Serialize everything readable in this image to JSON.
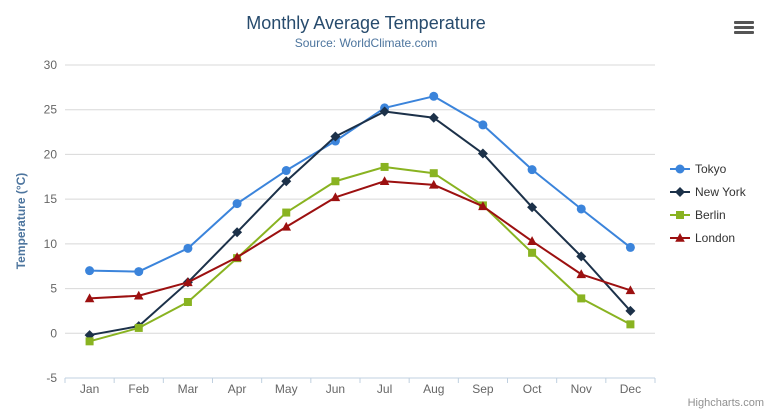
{
  "credits": "Highcharts.com",
  "colors": {
    "title": "#274b6d",
    "subtitle": "#4d759e",
    "axis_title": "#4d759e",
    "tick_label": "#666666",
    "grid_line": "#d8d8d8",
    "axis_line": "#c0d0e0",
    "legend_text": "#333333",
    "credits_text": "#909090",
    "export_icon": "#555555"
  },
  "chart_data": {
    "type": "line",
    "title": "Monthly Average Temperature",
    "subtitle": "Source: WorldClimate.com",
    "xlabel": "",
    "ylabel": "Temperature (°C)",
    "ylim": [
      -5,
      30
    ],
    "y_ticks": [
      30,
      25,
      20,
      15,
      10,
      5,
      0,
      -5
    ],
    "grid": true,
    "legend_position": "right-middle",
    "categories": [
      "Jan",
      "Feb",
      "Mar",
      "Apr",
      "May",
      "Jun",
      "Jul",
      "Aug",
      "Sep",
      "Oct",
      "Nov",
      "Dec"
    ],
    "series": [
      {
        "name": "Tokyo",
        "color": "#3b84db",
        "marker": "circle",
        "values": [
          7.0,
          6.9,
          9.5,
          14.5,
          18.2,
          21.5,
          25.2,
          26.5,
          23.3,
          18.3,
          13.9,
          9.6
        ]
      },
      {
        "name": "New York",
        "color": "#1c3149",
        "marker": "diamond",
        "values": [
          -0.2,
          0.8,
          5.7,
          11.3,
          17.0,
          22.0,
          24.8,
          24.1,
          20.1,
          14.1,
          8.6,
          2.5
        ]
      },
      {
        "name": "Berlin",
        "color": "#89b321",
        "marker": "square",
        "values": [
          -0.9,
          0.6,
          3.5,
          8.4,
          13.5,
          17.0,
          18.6,
          17.9,
          14.3,
          9.0,
          3.9,
          1.0
        ]
      },
      {
        "name": "London",
        "color": "#9c1010",
        "marker": "triangle",
        "values": [
          3.9,
          4.2,
          5.7,
          8.5,
          11.9,
          15.2,
          17.0,
          16.6,
          14.2,
          10.3,
          6.6,
          4.8
        ]
      }
    ]
  }
}
